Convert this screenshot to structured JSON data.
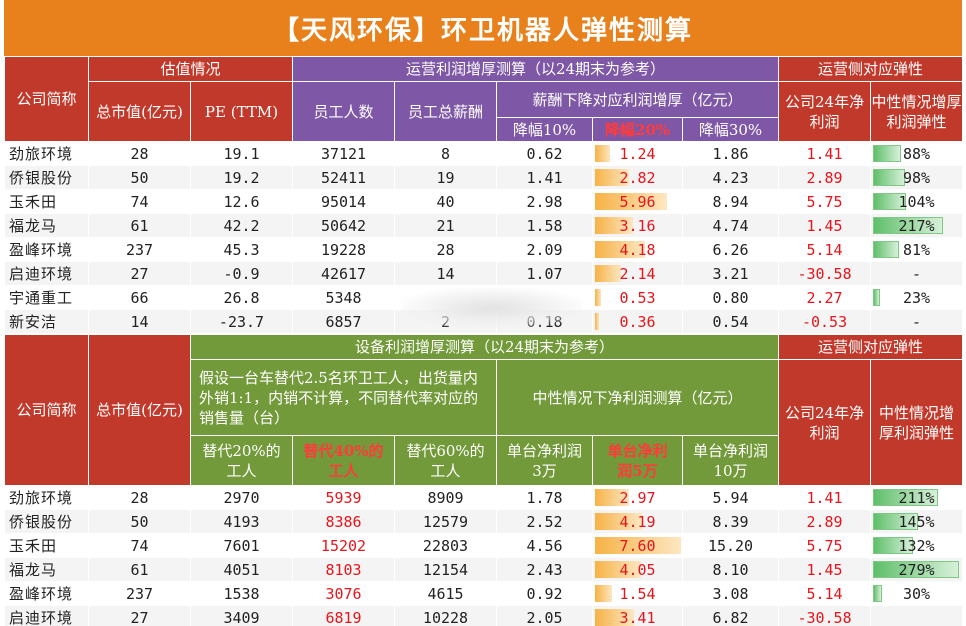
{
  "title": "【天风环保】环卫机器人弹性测算",
  "top": {
    "headers": {
      "company": "公司简称",
      "valuation": "估值情况",
      "market_cap": "总市值(亿元)",
      "pe": "PE (TTM)",
      "op_profit": "运营利润增厚测算（以24期末为参考）",
      "employees": "员工人数",
      "total_salary": "员工总薪酬",
      "salary_cut": "薪酬下降对应利润增厚（亿元）",
      "cut10": "降幅10%",
      "cut20": "降幅20%",
      "cut30": "降幅30%",
      "elasticity_group": "运营侧对应弹性",
      "net_profit": "公司24年净利润",
      "elasticity": "中性情况增厚利润弹性"
    },
    "rows": [
      {
        "name": "劲旅环境",
        "mcap": "28",
        "pe": "19.1",
        "emp": "37121",
        "salary": "8",
        "c10": "0.62",
        "c20": "1.24",
        "c20_frac": 0.21,
        "c30": "1.86",
        "np": "1.41",
        "el": "88%",
        "el_frac": 0.32
      },
      {
        "name": "侨银股份",
        "mcap": "50",
        "pe": "19.2",
        "emp": "52411",
        "salary": "19",
        "c10": "1.41",
        "c20": "2.82",
        "c20_frac": 0.47,
        "c30": "4.23",
        "np": "2.89",
        "el": "98%",
        "el_frac": 0.36
      },
      {
        "name": "玉禾田",
        "mcap": "74",
        "pe": "12.6",
        "emp": "95014",
        "salary": "40",
        "c10": "2.98",
        "c20": "5.96",
        "c20_frac": 1.0,
        "c30": "8.94",
        "np": "5.75",
        "el": "104%",
        "el_frac": 0.38
      },
      {
        "name": "福龙马",
        "mcap": "61",
        "pe": "42.2",
        "emp": "50642",
        "salary": "21",
        "c10": "1.58",
        "c20": "3.16",
        "c20_frac": 0.53,
        "c30": "4.74",
        "np": "1.45",
        "el": "217%",
        "el_frac": 0.8
      },
      {
        "name": "盈峰环境",
        "mcap": "237",
        "pe": "45.3",
        "emp": "19228",
        "salary": "28",
        "c10": "2.09",
        "c20": "4.18",
        "c20_frac": 0.7,
        "c30": "6.26",
        "np": "5.14",
        "el": "81%",
        "el_frac": 0.3
      },
      {
        "name": "启迪环境",
        "mcap": "27",
        "pe": "-0.9",
        "emp": "42617",
        "salary": "14",
        "c10": "1.07",
        "c20": "2.14",
        "c20_frac": 0.36,
        "c30": "3.21",
        "np": "-30.58",
        "el": "-",
        "el_frac": 0
      },
      {
        "name": "宇通重工",
        "mcap": "66",
        "pe": "26.8",
        "emp": "5348",
        "salary": "",
        "c10": "",
        "c20": "0.53",
        "c20_frac": 0.09,
        "c30": "0.80",
        "np": "2.27",
        "el": "23%",
        "el_frac": 0.08
      },
      {
        "name": "新安洁",
        "mcap": "14",
        "pe": "-23.7",
        "emp": "6857",
        "salary": "2",
        "c10": "0.18",
        "c20": "0.36",
        "c20_frac": 0.06,
        "c30": "0.54",
        "np": "-0.53",
        "el": "-",
        "el_frac": 0
      }
    ]
  },
  "bottom": {
    "headers": {
      "company": "公司简称",
      "market_cap": "总市值(亿元)",
      "equip_profit": "设备利润增厚测算（以24期末为参考）",
      "assumption": "假设一台车替代2.5名环卫工人，出货量内外销1:1，内销不计算，不同替代率对应的销售量（台）",
      "neutral": "中性情况下净利润测算（亿元）",
      "r20": "替代20%的工人",
      "r40": "替代40%的工人",
      "r60": "替代60%的工人",
      "p3": "单台净利润3万",
      "p5": "单台净利润5万",
      "p10": "单台净利润10万",
      "elasticity_group": "运营侧对应弹性",
      "net_profit": "公司24年净利润",
      "elasticity": "中性情况增厚利润弹性"
    },
    "rows": [
      {
        "name": "劲旅环境",
        "mcap": "28",
        "r20": "2970",
        "r40": "5939",
        "r60": "8909",
        "p3": "1.78",
        "p5": "2.97",
        "p5_frac": 0.39,
        "p10": "5.94",
        "np": "1.41",
        "el": "211%",
        "el_frac": 0.76
      },
      {
        "name": "侨银股份",
        "mcap": "50",
        "r20": "4193",
        "r40": "8386",
        "r60": "12579",
        "p3": "2.52",
        "p5": "4.19",
        "p5_frac": 0.55,
        "p10": "8.39",
        "np": "2.89",
        "el": "145%",
        "el_frac": 0.52
      },
      {
        "name": "玉禾田",
        "mcap": "74",
        "r20": "7601",
        "r40": "15202",
        "r60": "22803",
        "p3": "4.56",
        "p5": "7.60",
        "p5_frac": 1.0,
        "p10": "15.20",
        "np": "5.75",
        "el": "132%",
        "el_frac": 0.47
      },
      {
        "name": "福龙马",
        "mcap": "61",
        "r20": "4051",
        "r40": "8103",
        "r60": "12154",
        "p3": "2.43",
        "p5": "4.05",
        "p5_frac": 0.53,
        "p10": "8.10",
        "np": "1.45",
        "el": "279%",
        "el_frac": 1.0
      },
      {
        "name": "盈峰环境",
        "mcap": "237",
        "r20": "1538",
        "r40": "3076",
        "r60": "4615",
        "p3": "0.92",
        "p5": "1.54",
        "p5_frac": 0.2,
        "p10": "3.08",
        "np": "5.14",
        "el": "30%",
        "el_frac": 0.11
      },
      {
        "name": "启迪环境",
        "mcap": "27",
        "r20": "3409",
        "r40": "6819",
        "r60": "10228",
        "p3": "2.05",
        "p5": "3.41",
        "p5_frac": 0.45,
        "p10": "6.82",
        "np": "-30.58",
        "el": "",
        "el_frac": 0
      }
    ]
  }
}
